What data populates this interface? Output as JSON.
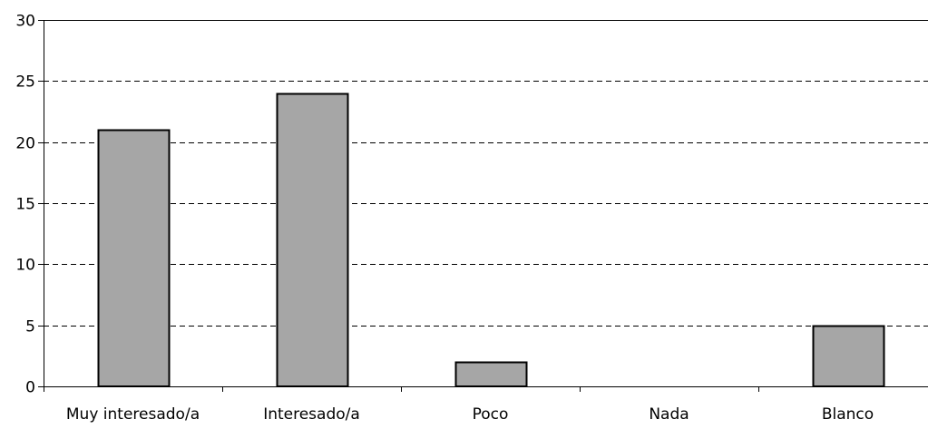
{
  "chart_data": {
    "type": "bar",
    "categories": [
      "Muy interesado/a",
      "Interesado/a",
      "Poco",
      "Nada",
      "Blanco"
    ],
    "values": [
      21,
      24,
      2,
      0,
      5
    ],
    "ylim": [
      0,
      30
    ],
    "yticks": [
      0,
      5,
      10,
      15,
      20,
      25,
      30
    ],
    "grid": "horizontal dashed",
    "bar_color": "#a6a6a6",
    "bar_stroke": "#000000",
    "grid_color": "#000000"
  }
}
